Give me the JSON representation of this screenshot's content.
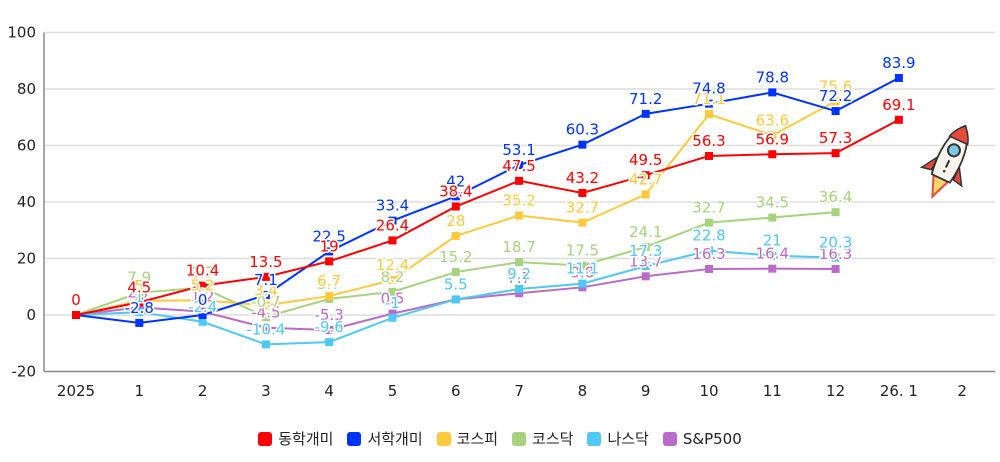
{
  "chart_data": {
    "type": "line",
    "title": "",
    "xlabel": "",
    "ylabel": "",
    "categories": [
      "2025",
      "1",
      "2",
      "3",
      "4",
      "5",
      "6",
      "7",
      "8",
      "9",
      "10",
      "11",
      "12",
      "26. 1",
      "2"
    ],
    "ylim": [
      -20,
      100
    ],
    "yticks": [
      -20,
      0,
      20,
      40,
      60,
      80,
      100
    ],
    "grid": true,
    "legend_position": "bottom",
    "series": [
      {
        "name": "동학개미",
        "color": "#FF0000",
        "values": [
          0,
          4.5,
          10.4,
          13.5,
          19,
          26.4,
          38.4,
          47.5,
          43.2,
          49.5,
          56.3,
          56.9,
          57.3,
          69.1
        ]
      },
      {
        "name": "서학개미",
        "color": "#0033FF",
        "values": [
          0,
          -2.8,
          0,
          7.1,
          22.5,
          33.4,
          42,
          53.1,
          60.3,
          71.2,
          74.8,
          78.8,
          72.2,
          83.9
        ]
      },
      {
        "name": "코스피",
        "color": "#FFC93C",
        "values": [
          0,
          5,
          5.2,
          3.4,
          6.7,
          12.4,
          28,
          35.2,
          32.7,
          42.7,
          71.1,
          63.6,
          75.6
        ]
      },
      {
        "name": "코스닥",
        "color": "#A8D27E",
        "values": [
          0,
          7.9,
          9.7,
          -0.7,
          5.7,
          8.2,
          15.2,
          18.7,
          17.5,
          24.1,
          32.7,
          34.5,
          36.4
        ]
      },
      {
        "name": "나스닥",
        "color": "#4FC8F5",
        "values": [
          0,
          1.0,
          -2.4,
          -10.4,
          -9.6,
          -1,
          5.5,
          9.2,
          11.1,
          17.3,
          22.8,
          21,
          20.3
        ]
      },
      {
        "name": "S&P500",
        "color": "#B86BC9",
        "values": [
          0,
          2.7,
          1.2,
          -4.5,
          -5.3,
          0.5,
          5.5,
          7.7,
          9.8,
          13.7,
          16.3,
          16.4,
          16.3
        ]
      }
    ],
    "annotations": [
      "rocket-illustration"
    ]
  },
  "legend": {
    "items": [
      {
        "label": "동학개미",
        "color": "#FF0000"
      },
      {
        "label": "서학개미",
        "color": "#0033FF"
      },
      {
        "label": "코스피",
        "color": "#FFC93C"
      },
      {
        "label": "코스닥",
        "color": "#A8D27E"
      },
      {
        "label": "나스닥",
        "color": "#4FC8F5"
      },
      {
        "label": "S&P500",
        "color": "#B86BC9"
      }
    ]
  }
}
